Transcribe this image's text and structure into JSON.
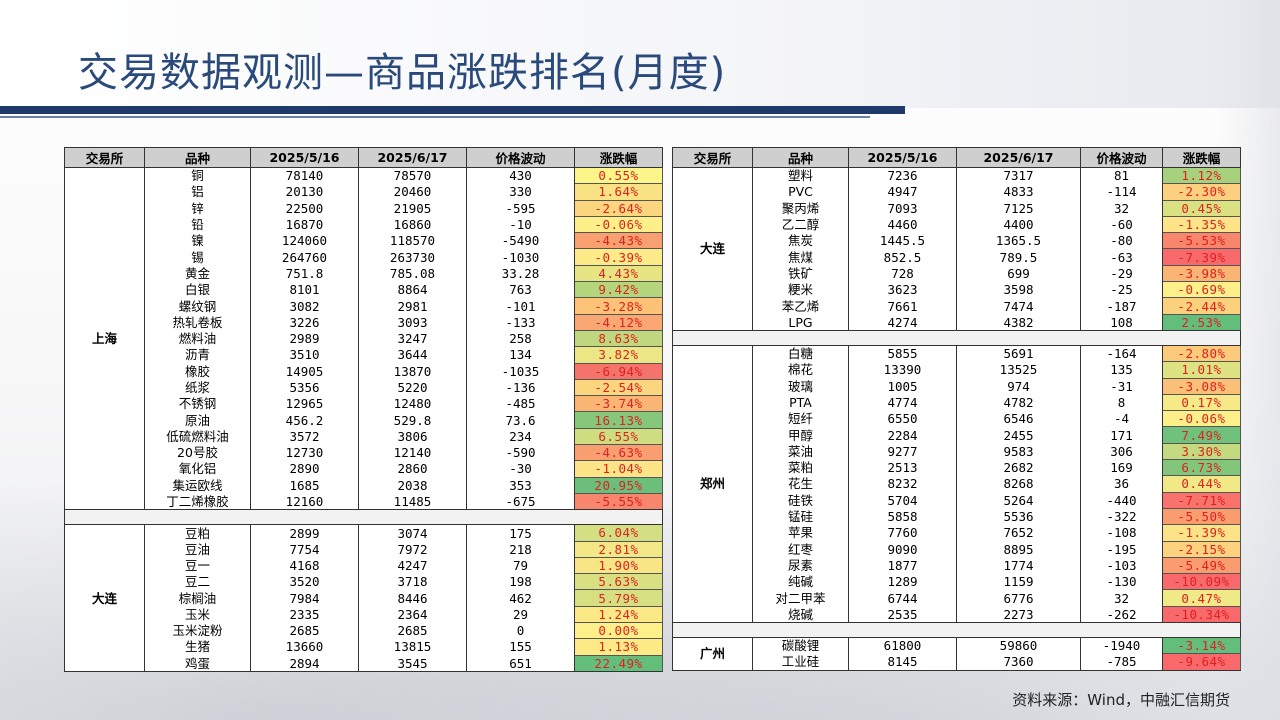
{
  "title": "交易数据观测—商品涨跌排名(月度)",
  "source": "资料来源：Wind，中融汇信期货",
  "headers": [
    "交易所",
    "品种",
    "2025/5/16",
    "2025/6/17",
    "价格波动",
    "涨跌幅"
  ],
  "left_groups": [
    {
      "exchange": "上海",
      "rows": [
        {
          "name": "铜",
          "p1": "78140",
          "p2": "78570",
          "diff": "430",
          "pct": "0.55%",
          "color": "#fcf58a"
        },
        {
          "name": "铝",
          "p1": "20130",
          "p2": "20460",
          "diff": "330",
          "pct": "1.64%",
          "color": "#f9e283"
        },
        {
          "name": "锌",
          "p1": "22500",
          "p2": "21905",
          "diff": "-595",
          "pct": "-2.64%",
          "color": "#fcd67f"
        },
        {
          "name": "铅",
          "p1": "16870",
          "p2": "16860",
          "diff": "-10",
          "pct": "-0.06%",
          "color": "#fdf08a"
        },
        {
          "name": "镍",
          "p1": "124060",
          "p2": "118570",
          "diff": "-5490",
          "pct": "-4.43%",
          "color": "#f9a070"
        },
        {
          "name": "锡",
          "p1": "264760",
          "p2": "263730",
          "diff": "-1030",
          "pct": "-0.39%",
          "color": "#fdea88"
        },
        {
          "name": "黄金",
          "p1": "751.8",
          "p2": "785.08",
          "diff": "33.28",
          "pct": "4.43%",
          "color": "#e6e483"
        },
        {
          "name": "白银",
          "p1": "8101",
          "p2": "8864",
          "diff": "763",
          "pct": "9.42%",
          "color": "#b5d57d"
        },
        {
          "name": "螺纹钢",
          "p1": "3082",
          "p2": "2981",
          "diff": "-101",
          "pct": "-3.28%",
          "color": "#fbc278"
        },
        {
          "name": "热轧卷板",
          "p1": "3226",
          "p2": "3093",
          "diff": "-133",
          "pct": "-4.12%",
          "color": "#faa873"
        },
        {
          "name": "燃料油",
          "p1": "2989",
          "p2": "3247",
          "diff": "258",
          "pct": "8.63%",
          "color": "#bfd87f"
        },
        {
          "name": "沥青",
          "p1": "3510",
          "p2": "3644",
          "diff": "134",
          "pct": "3.82%",
          "color": "#ede685"
        },
        {
          "name": "橡胶",
          "p1": "14905",
          "p2": "13870",
          "diff": "-1035",
          "pct": "-6.94%",
          "color": "#f4736b"
        },
        {
          "name": "纸浆",
          "p1": "5356",
          "p2": "5220",
          "diff": "-136",
          "pct": "-2.54%",
          "color": "#fcd57f"
        },
        {
          "name": "不锈钢",
          "p1": "12965",
          "p2": "12480",
          "diff": "-485",
          "pct": "-3.74%",
          "color": "#fab575"
        },
        {
          "name": "原油",
          "p1": "456.2",
          "p2": "529.8",
          "diff": "73.6",
          "pct": "16.13%",
          "color": "#86c77c"
        },
        {
          "name": "低硫燃料油",
          "p1": "3572",
          "p2": "3806",
          "diff": "234",
          "pct": "6.55%",
          "color": "#cfdd81"
        },
        {
          "name": "20号胶",
          "p1": "12730",
          "p2": "12140",
          "diff": "-590",
          "pct": "-4.63%",
          "color": "#f89e71"
        },
        {
          "name": "氧化铝",
          "p1": "2890",
          "p2": "2860",
          "diff": "-30",
          "pct": "-1.04%",
          "color": "#fde587"
        },
        {
          "name": "集运欧线",
          "p1": "1685",
          "p2": "2038",
          "diff": "353",
          "pct": "20.95%",
          "color": "#6cbf7b"
        },
        {
          "name": "丁二烯橡胶",
          "p1": "12160",
          "p2": "11485",
          "diff": "-675",
          "pct": "-5.55%",
          "color": "#f7866d"
        }
      ]
    },
    {
      "exchange": "大连",
      "rows": [
        {
          "name": "豆粕",
          "p1": "2899",
          "p2": "3074",
          "diff": "175",
          "pct": "6.04%",
          "color": "#d3df82"
        },
        {
          "name": "豆油",
          "p1": "7754",
          "p2": "7972",
          "diff": "218",
          "pct": "2.81%",
          "color": "#f3e887"
        },
        {
          "name": "豆一",
          "p1": "4168",
          "p2": "4247",
          "diff": "79",
          "pct": "1.90%",
          "color": "#f8e585"
        },
        {
          "name": "豆二",
          "p1": "3520",
          "p2": "3718",
          "diff": "198",
          "pct": "5.63%",
          "color": "#d8e082"
        },
        {
          "name": "棕榈油",
          "p1": "7984",
          "p2": "8446",
          "diff": "462",
          "pct": "5.79%",
          "color": "#d6e082"
        },
        {
          "name": "玉米",
          "p1": "2335",
          "p2": "2364",
          "diff": "29",
          "pct": "1.24%",
          "color": "#fbe886"
        },
        {
          "name": "玉米淀粉",
          "p1": "2685",
          "p2": "2685",
          "diff": "0",
          "pct": "0.00%",
          "color": "#fdf08a"
        },
        {
          "name": "生猪",
          "p1": "13660",
          "p2": "13815",
          "diff": "155",
          "pct": "1.13%",
          "color": "#fbea86"
        },
        {
          "name": "鸡蛋",
          "p1": "2894",
          "p2": "3545",
          "diff": "651",
          "pct": "22.49%",
          "color": "#63be7b"
        }
      ]
    }
  ],
  "right_groups": [
    {
      "exchange": "大连",
      "rows": [
        {
          "name": "塑料",
          "p1": "7236",
          "p2": "7317",
          "diff": "81",
          "pct": "1.12%",
          "color": "#a8d17d"
        },
        {
          "name": "PVC",
          "p1": "4947",
          "p2": "4833",
          "diff": "-114",
          "pct": "-2.30%",
          "color": "#fcd07e"
        },
        {
          "name": "聚丙烯",
          "p1": "7093",
          "p2": "7125",
          "diff": "32",
          "pct": "0.45%",
          "color": "#d9e183"
        },
        {
          "name": "乙二醇",
          "p1": "4460",
          "p2": "4400",
          "diff": "-60",
          "pct": "-1.35%",
          "color": "#fde488"
        },
        {
          "name": "焦炭",
          "p1": "1445.5",
          "p2": "1365.5",
          "diff": "-80",
          "pct": "-5.53%",
          "color": "#f7866d"
        },
        {
          "name": "焦煤",
          "p1": "852.5",
          "p2": "789.5",
          "diff": "-63",
          "pct": "-7.39%",
          "color": "#f8696b"
        },
        {
          "name": "铁矿",
          "p1": "728",
          "p2": "699",
          "diff": "-29",
          "pct": "-3.98%",
          "color": "#fab575"
        },
        {
          "name": "粳米",
          "p1": "3623",
          "p2": "3598",
          "diff": "-25",
          "pct": "-0.69%",
          "color": "#fdf08a"
        },
        {
          "name": "苯乙烯",
          "p1": "7661",
          "p2": "7474",
          "diff": "-187",
          "pct": "-2.44%",
          "color": "#fcd17e"
        },
        {
          "name": "LPG",
          "p1": "4274",
          "p2": "4382",
          "diff": "108",
          "pct": "2.53%",
          "color": "#63be7b"
        }
      ]
    },
    {
      "exchange": "郑州",
      "rows": [
        {
          "name": "白糖",
          "p1": "5855",
          "p2": "5691",
          "diff": "-164",
          "pct": "-2.80%",
          "color": "#fcca7b"
        },
        {
          "name": "棉花",
          "p1": "13390",
          "p2": "13525",
          "diff": "135",
          "pct": "1.01%",
          "color": "#dde283"
        },
        {
          "name": "玻璃",
          "p1": "1005",
          "p2": "974",
          "diff": "-31",
          "pct": "-3.08%",
          "color": "#fbc078"
        },
        {
          "name": "PTA",
          "p1": "4774",
          "p2": "4782",
          "diff": "8",
          "pct": "0.17%",
          "color": "#f6ea88"
        },
        {
          "name": "短纤",
          "p1": "6550",
          "p2": "6546",
          "diff": "-4",
          "pct": "-0.06%",
          "color": "#fdf08a"
        },
        {
          "name": "甲醇",
          "p1": "2284",
          "p2": "2455",
          "diff": "171",
          "pct": "7.49%",
          "color": "#70c17b"
        },
        {
          "name": "菜油",
          "p1": "9277",
          "p2": "9583",
          "diff": "306",
          "pct": "3.30%",
          "color": "#c4da80"
        },
        {
          "name": "菜粕",
          "p1": "2513",
          "p2": "2682",
          "diff": "169",
          "pct": "6.73%",
          "color": "#82c67c"
        },
        {
          "name": "花生",
          "p1": "8232",
          "p2": "8268",
          "diff": "36",
          "pct": "0.44%",
          "color": "#f1e987"
        },
        {
          "name": "硅铁",
          "p1": "5704",
          "p2": "5264",
          "diff": "-440",
          "pct": "-7.71%",
          "color": "#f8736c"
        },
        {
          "name": "锰硅",
          "p1": "5858",
          "p2": "5536",
          "diff": "-322",
          "pct": "-5.50%",
          "color": "#f99c70"
        },
        {
          "name": "苹果",
          "p1": "7760",
          "p2": "7652",
          "diff": "-108",
          "pct": "-1.39%",
          "color": "#fde387"
        },
        {
          "name": "红枣",
          "p1": "9090",
          "p2": "8895",
          "diff": "-195",
          "pct": "-2.15%",
          "color": "#fcd27e"
        },
        {
          "name": "尿素",
          "p1": "1877",
          "p2": "1774",
          "diff": "-103",
          "pct": "-5.49%",
          "color": "#f99c70"
        },
        {
          "name": "纯碱",
          "p1": "1289",
          "p2": "1159",
          "diff": "-130",
          "pct": "-10.09%",
          "color": "#f8696b"
        },
        {
          "name": "对二甲苯",
          "p1": "6744",
          "p2": "6776",
          "diff": "32",
          "pct": "0.47%",
          "color": "#f0e987"
        },
        {
          "name": "烧碱",
          "p1": "2535",
          "p2": "2273",
          "diff": "-262",
          "pct": "-10.34%",
          "color": "#f8696b"
        }
      ]
    },
    {
      "exchange": "广州",
      "rows": [
        {
          "name": "碳酸锂",
          "p1": "61800",
          "p2": "59860",
          "diff": "-1940",
          "pct": "-3.14%",
          "color": "#63be7b"
        },
        {
          "name": "工业硅",
          "p1": "8145",
          "p2": "7360",
          "diff": "-785",
          "pct": "-9.64%",
          "color": "#f8696b"
        }
      ]
    }
  ],
  "colors": {
    "title": "#2a4a7c",
    "bar": "#1f3a6a",
    "header_bg": "#cfcfcf",
    "neg_text": "#e02020",
    "pos_text": "#e02020"
  }
}
